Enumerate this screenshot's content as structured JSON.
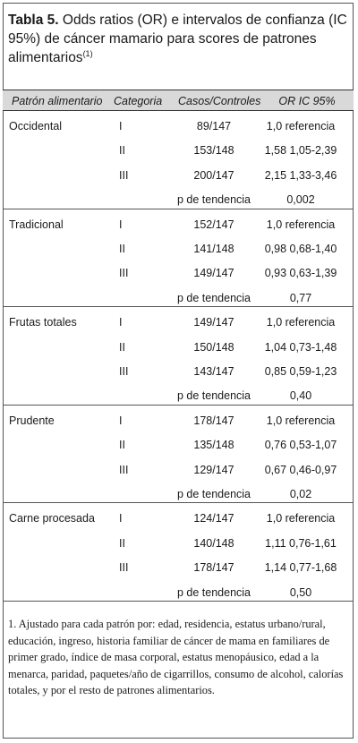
{
  "title": {
    "label": "Tabla 5.",
    "text": "Odds ratios (OR) e intervalos de confianza (IC 95%) de cáncer mamario para scores de patrones alimentarios",
    "sup": "(1)"
  },
  "columns": [
    "Patrón alimentario",
    "Categoria",
    "Casos/Controles",
    "OR IC 95%"
  ],
  "groups": [
    {
      "name": "Occidental",
      "rows": [
        {
          "cat": "I",
          "cases": "89/147",
          "or": "1,0 referencia"
        },
        {
          "cat": "II",
          "cases": "153/148",
          "or": "1,58 1,05-2,39"
        },
        {
          "cat": "III",
          "cases": "200/147",
          "or": "2,15 1,33-3,46"
        }
      ],
      "trend_label": "p de tendencia",
      "trend": "0,002"
    },
    {
      "name": "Tradicional",
      "rows": [
        {
          "cat": "I",
          "cases": "152/147",
          "or": "1,0 referencia"
        },
        {
          "cat": "II",
          "cases": "141/148",
          "or": "0,98 0,68-1,40"
        },
        {
          "cat": "III",
          "cases": "149/147",
          "or": "0,93 0,63-1,39"
        }
      ],
      "trend_label": "p de tendencia",
      "trend": "0,77"
    },
    {
      "name": "Frutas totales",
      "rows": [
        {
          "cat": "I",
          "cases": "149/147",
          "or": "1,0 referencia"
        },
        {
          "cat": "II",
          "cases": "150/148",
          "or": "1,04 0,73-1,48"
        },
        {
          "cat": "III",
          "cases": "143/147",
          "or": "0,85 0,59-1,23"
        }
      ],
      "trend_label": "p de tendencia",
      "trend": "0,40"
    },
    {
      "name": "Prudente",
      "rows": [
        {
          "cat": "I",
          "cases": "178/147",
          "or": "1,0 referencia"
        },
        {
          "cat": "II",
          "cases": "135/148",
          "or": "0,76 0,53-1,07"
        },
        {
          "cat": "III",
          "cases": "129/147",
          "or": "0,67 0,46-0,97"
        }
      ],
      "trend_label": "p de tendencia",
      "trend": "0,02"
    },
    {
      "name": "Carne procesada",
      "rows": [
        {
          "cat": "I",
          "cases": "124/147",
          "or": "1,0 referencia"
        },
        {
          "cat": "II",
          "cases": "140/148",
          "or": "1,11 0,76-1,61"
        },
        {
          "cat": "III",
          "cases": "178/147",
          "or": "1,14 0,77-1,68"
        }
      ],
      "trend_label": "p de tendencia",
      "trend": "0,50"
    }
  ],
  "footnote": "1. Ajustado para cada patrón por: edad, residencia, estatus urbano/rural, educación, ingreso, historia familiar de cáncer de mama en familiares de primer grado, índice de masa corporal, estatus menopáusico, edad a la menarca, paridad, paquetes/año de cigarrillos, consumo de alcohol, calorías totales, y por el resto de patrones alimentarios."
}
